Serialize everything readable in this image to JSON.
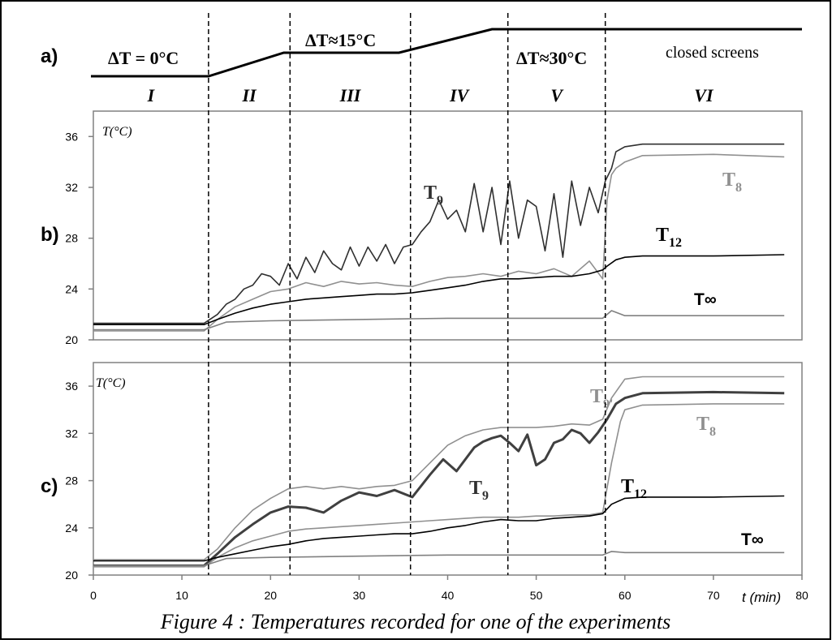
{
  "caption": "Figure 4 : Temperatures recorded for one of the experiments",
  "chart_data": [
    {
      "panel": "a)",
      "type": "line",
      "description_labels": {
        "dt0": "ΔT = 0°C",
        "dt15": "ΔT≈15°C",
        "dt30": "ΔT≈30°C",
        "closed": "closed screens"
      },
      "phases": [
        "I",
        "II",
        "III",
        "IV",
        "V",
        "VI"
      ],
      "phase_boundaries_min": [
        13,
        22.2,
        35.8,
        46.8,
        57.8
      ],
      "profile": {
        "x": [
          0,
          13,
          21.5,
          34.5,
          45,
          80
        ],
        "level": [
          0,
          0,
          15,
          15,
          30,
          30
        ]
      }
    },
    {
      "panel": "b)",
      "type": "line",
      "ylabel": "T(°C)",
      "xlim": [
        0,
        80
      ],
      "ylim": [
        20,
        38
      ],
      "yticks": [
        20,
        24,
        28,
        32,
        36
      ],
      "series": [
        {
          "name": "T9",
          "color": "#303030",
          "x": [
            0,
            12.5,
            14,
            15,
            16,
            17,
            18,
            19,
            20,
            21,
            22,
            23,
            24,
            25,
            26,
            27,
            28,
            29,
            30,
            31,
            32,
            33,
            34,
            35,
            36,
            37,
            38,
            39,
            40,
            41,
            42,
            43,
            44,
            45,
            46,
            47,
            48,
            49,
            50,
            51,
            52,
            53,
            54,
            55,
            56,
            57,
            57.8,
            58.5,
            59,
            60,
            61,
            62,
            64,
            70,
            78
          ],
          "y": [
            21.3,
            21.3,
            22.0,
            22.8,
            23.2,
            24.0,
            24.3,
            25.2,
            25.0,
            24.3,
            26.0,
            24.8,
            26.5,
            25.3,
            27.0,
            26.0,
            25.5,
            27.3,
            25.8,
            27.3,
            26.2,
            27.5,
            26.0,
            27.3,
            27.5,
            28.5,
            29.3,
            31.0,
            29.5,
            30.2,
            28.5,
            32.3,
            28.5,
            32.0,
            27.5,
            32.5,
            28.0,
            31.0,
            30.5,
            27.0,
            31.5,
            26.5,
            32.5,
            29.0,
            32.0,
            30.0,
            32.5,
            33.5,
            34.8,
            35.2,
            35.3,
            35.4,
            35.4,
            35.4,
            35.4
          ]
        },
        {
          "name": "T8",
          "color": "#909090",
          "x": [
            0,
            12.5,
            14,
            16,
            18,
            20,
            22,
            24,
            26,
            28,
            30,
            32,
            34,
            36,
            38,
            40,
            42,
            44,
            46,
            48,
            50,
            52,
            54,
            56,
            57.5,
            58,
            58.5,
            59,
            60,
            62,
            70,
            78
          ],
          "y": [
            20.7,
            20.7,
            21.6,
            22.6,
            23.2,
            23.8,
            24.0,
            24.5,
            24.2,
            24.6,
            24.4,
            24.5,
            24.3,
            24.2,
            24.6,
            24.9,
            25.0,
            25.2,
            25.0,
            25.4,
            25.2,
            25.6,
            25.0,
            26.2,
            24.8,
            31.0,
            33.0,
            33.5,
            34.0,
            34.5,
            34.6,
            34.4
          ]
        },
        {
          "name": "T12",
          "color": "#000000",
          "x": [
            0,
            12.5,
            14,
            16,
            18,
            20,
            22,
            24,
            26,
            28,
            30,
            32,
            34,
            36,
            38,
            40,
            42,
            44,
            46,
            48,
            50,
            52,
            54,
            56,
            57.5,
            58,
            59,
            60,
            62,
            70,
            78
          ],
          "y": [
            21.2,
            21.2,
            21.6,
            22.1,
            22.5,
            22.8,
            23.0,
            23.2,
            23.3,
            23.4,
            23.5,
            23.6,
            23.6,
            23.7,
            23.9,
            24.1,
            24.3,
            24.6,
            24.8,
            24.8,
            24.9,
            25.0,
            25.0,
            25.2,
            25.5,
            25.8,
            26.3,
            26.5,
            26.6,
            26.6,
            26.7
          ]
        },
        {
          "name": "T∞",
          "color": "#808080",
          "x": [
            0,
            12.5,
            15,
            20,
            30,
            40,
            50,
            57.5,
            58.5,
            60,
            65,
            78
          ],
          "y": [
            20.8,
            20.8,
            21.4,
            21.5,
            21.6,
            21.7,
            21.7,
            21.7,
            22.3,
            21.9,
            21.9,
            21.9
          ]
        }
      ]
    },
    {
      "panel": "c)",
      "type": "line",
      "ylabel": "T(°C)",
      "xlabel": "t (min)",
      "xlim": [
        0,
        80
      ],
      "ylim": [
        20,
        38
      ],
      "xticks": [
        0,
        10,
        20,
        30,
        40,
        50,
        60,
        70,
        80
      ],
      "yticks": [
        20,
        24,
        28,
        32,
        36
      ],
      "series": [
        {
          "name": "T9'",
          "color": "#909090",
          "x": [
            0,
            12.5,
            14,
            16,
            18,
            20,
            22,
            24,
            26,
            28,
            30,
            32,
            34,
            36,
            38,
            40,
            42,
            44,
            46,
            48,
            50,
            52,
            54,
            56,
            57.5,
            58.5,
            60,
            62,
            70,
            78
          ],
          "y": [
            21.3,
            21.3,
            22.2,
            24.0,
            25.5,
            26.5,
            27.3,
            27.5,
            27.3,
            27.5,
            27.3,
            27.5,
            27.6,
            28.0,
            29.5,
            31.0,
            31.8,
            32.3,
            32.5,
            32.5,
            32.5,
            32.6,
            32.8,
            32.7,
            33.2,
            35.0,
            36.6,
            36.8,
            36.8,
            36.8
          ]
        },
        {
          "name": "T9",
          "color": "#404040",
          "x": [
            0,
            12.5,
            14,
            16,
            18,
            20,
            22,
            24,
            26,
            28,
            30,
            32,
            34,
            36,
            38,
            39.5,
            41,
            43,
            44,
            45,
            46,
            47,
            48,
            49,
            50,
            51,
            52,
            53,
            54,
            55,
            56,
            57,
            58,
            59,
            60,
            62,
            70,
            78
          ],
          "y": [
            20.8,
            20.8,
            21.8,
            23.2,
            24.3,
            25.3,
            25.8,
            25.7,
            25.3,
            26.3,
            27.0,
            26.7,
            27.2,
            26.6,
            28.5,
            29.8,
            28.8,
            30.8,
            31.3,
            31.6,
            31.8,
            31.2,
            30.5,
            31.9,
            29.3,
            29.8,
            31.2,
            31.5,
            32.3,
            32.0,
            31.2,
            32.1,
            33.2,
            34.5,
            35.0,
            35.4,
            35.5,
            35.4
          ]
        },
        {
          "name": "T8",
          "color": "#909090",
          "x": [
            0,
            12.5,
            14,
            16,
            18,
            20,
            22,
            24,
            26,
            28,
            30,
            32,
            34,
            36,
            38,
            40,
            42,
            44,
            46,
            48,
            50,
            52,
            54,
            56,
            57.5,
            58.5,
            59.5,
            60,
            62,
            70,
            78
          ],
          "y": [
            20.7,
            20.7,
            21.5,
            22.3,
            22.9,
            23.3,
            23.7,
            23.9,
            24.0,
            24.1,
            24.2,
            24.3,
            24.4,
            24.5,
            24.6,
            24.7,
            24.8,
            24.9,
            24.9,
            24.9,
            25.0,
            25.0,
            25.1,
            25.1,
            25.3,
            29.5,
            33.0,
            34.0,
            34.4,
            34.5,
            34.5
          ]
        },
        {
          "name": "T12",
          "color": "#000000",
          "x": [
            0,
            12.5,
            14,
            16,
            18,
            20,
            22,
            24,
            26,
            28,
            30,
            32,
            34,
            36,
            38,
            40,
            42,
            44,
            46,
            48,
            50,
            52,
            54,
            56,
            57.5,
            58.5,
            60,
            62,
            70,
            78
          ],
          "y": [
            21.2,
            21.2,
            21.5,
            21.8,
            22.1,
            22.4,
            22.6,
            22.9,
            23.1,
            23.2,
            23.3,
            23.4,
            23.5,
            23.5,
            23.7,
            24.0,
            24.2,
            24.5,
            24.7,
            24.6,
            24.6,
            24.8,
            24.9,
            25.0,
            25.2,
            26.0,
            26.5,
            26.6,
            26.6,
            26.7
          ]
        },
        {
          "name": "T∞",
          "color": "#808080",
          "x": [
            0,
            12.5,
            15,
            20,
            30,
            40,
            50,
            57.5,
            58.5,
            60,
            65,
            78
          ],
          "y": [
            20.8,
            20.8,
            21.4,
            21.5,
            21.6,
            21.7,
            21.7,
            21.7,
            22.0,
            21.9,
            21.9,
            21.9
          ]
        }
      ]
    }
  ]
}
